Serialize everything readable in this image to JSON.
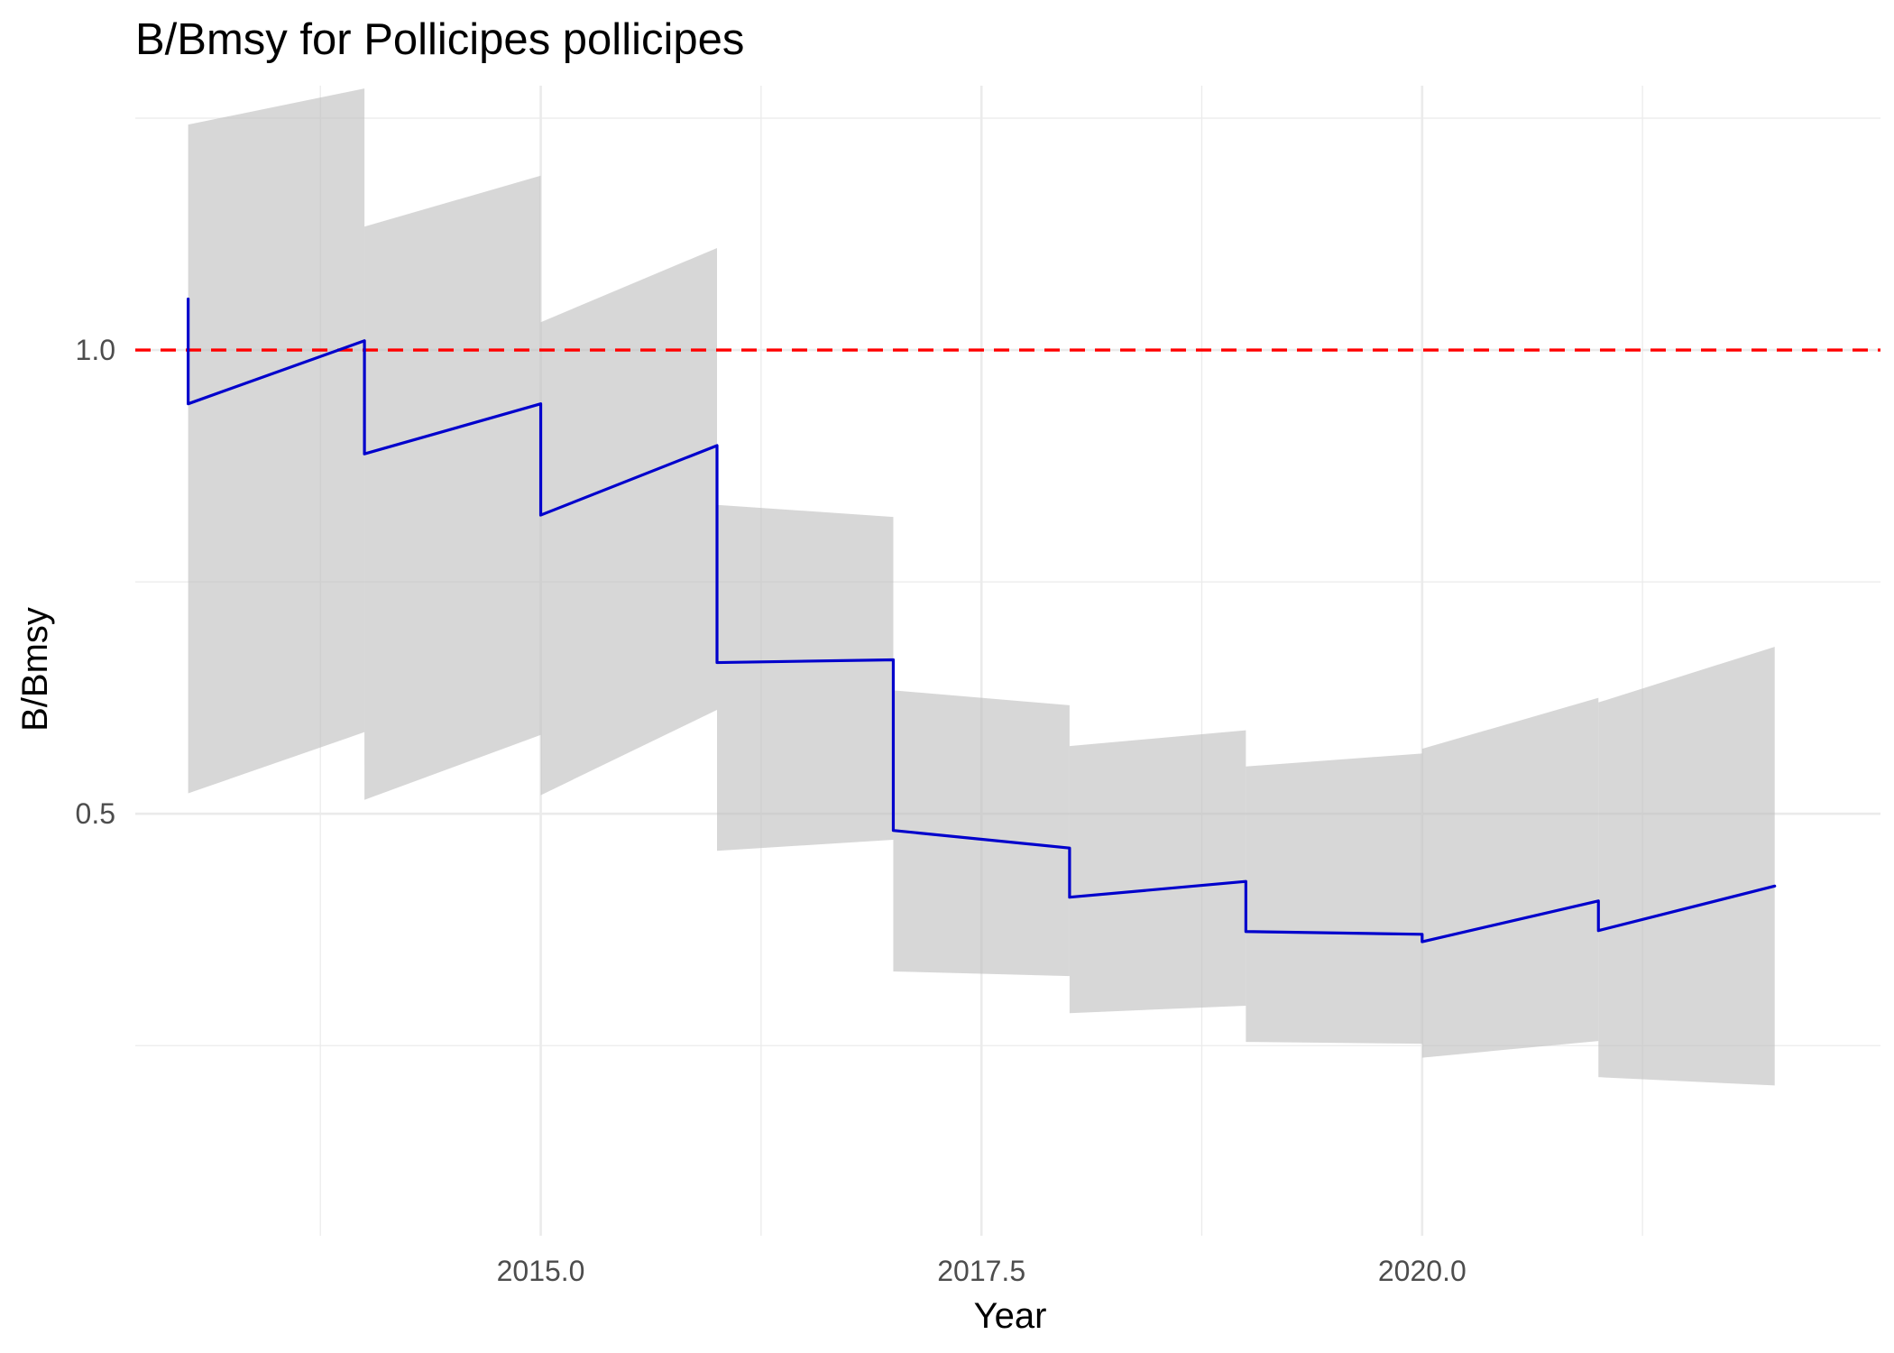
{
  "chart_data": {
    "type": "line",
    "title": "B/Bmsy for Pollicipes pollicipes",
    "xlabel": "Year",
    "ylabel": "B/Bmsy",
    "xlim": [
      2012.7,
      2022.6
    ],
    "ylim": [
      0.045,
      1.285
    ],
    "x_ticks": [
      2015.0,
      2017.5,
      2020.0
    ],
    "x_tick_labels": [
      "2015.0",
      "2017.5",
      "2020.0"
    ],
    "x_minor_ticks": [
      2013.75,
      2016.25,
      2018.75,
      2021.25
    ],
    "y_ticks": [
      0.5,
      1.0
    ],
    "y_tick_labels": [
      "0.5",
      "1.0"
    ],
    "y_minor_ticks": [
      0.25,
      0.75,
      1.25
    ],
    "grid": true,
    "reference_line": {
      "y": 1.0,
      "style": "dashed",
      "color": "#ff0000"
    },
    "series": [
      {
        "color": "#0000cc",
        "ribbon_color": "#bebebe",
        "segments": [
          {
            "x": [
              2013.0,
              2014.0
            ],
            "y": [
              0.942,
              1.01
            ],
            "lower": [
              0.522,
              0.588
            ],
            "upper": [
              1.243,
              1.282
            ]
          },
          {
            "x": [
              2014.0,
              2015.0
            ],
            "y": [
              0.888,
              0.942
            ],
            "lower": [
              0.515,
              0.585
            ],
            "upper": [
              1.133,
              1.188
            ]
          },
          {
            "x": [
              2015.0,
              2016.0
            ],
            "y": [
              0.822,
              0.897
            ],
            "lower": [
              0.52,
              0.612
            ],
            "upper": [
              1.03,
              1.11
            ]
          },
          {
            "x": [
              2016.0,
              2017.0
            ],
            "y": [
              0.663,
              0.666
            ],
            "lower": [
              0.46,
              0.472
            ],
            "upper": [
              0.833,
              0.82
            ]
          },
          {
            "x": [
              2017.0,
              2018.0
            ],
            "y": [
              0.482,
              0.463
            ],
            "lower": [
              0.33,
              0.325
            ],
            "upper": [
              0.633,
              0.617
            ]
          },
          {
            "x": [
              2018.0,
              2019.0
            ],
            "y": [
              0.41,
              0.427
            ],
            "lower": [
              0.285,
              0.293
            ],
            "upper": [
              0.573,
              0.59
            ]
          },
          {
            "x": [
              2019.0,
              2020.0
            ],
            "y": [
              0.373,
              0.37
            ],
            "lower": [
              0.254,
              0.252
            ],
            "upper": [
              0.551,
              0.565
            ]
          },
          {
            "x": [
              2020.0,
              2021.0
            ],
            "y": [
              0.362,
              0.406
            ],
            "lower": [
              0.237,
              0.255
            ],
            "upper": [
              0.57,
              0.625
            ]
          },
          {
            "x": [
              2021.0,
              2022.0
            ],
            "y": [
              0.374,
              0.422
            ],
            "lower": [
              0.216,
              0.207
            ],
            "upper": [
              0.62,
              0.68
            ]
          }
        ],
        "start_value": 1.055
      }
    ]
  }
}
